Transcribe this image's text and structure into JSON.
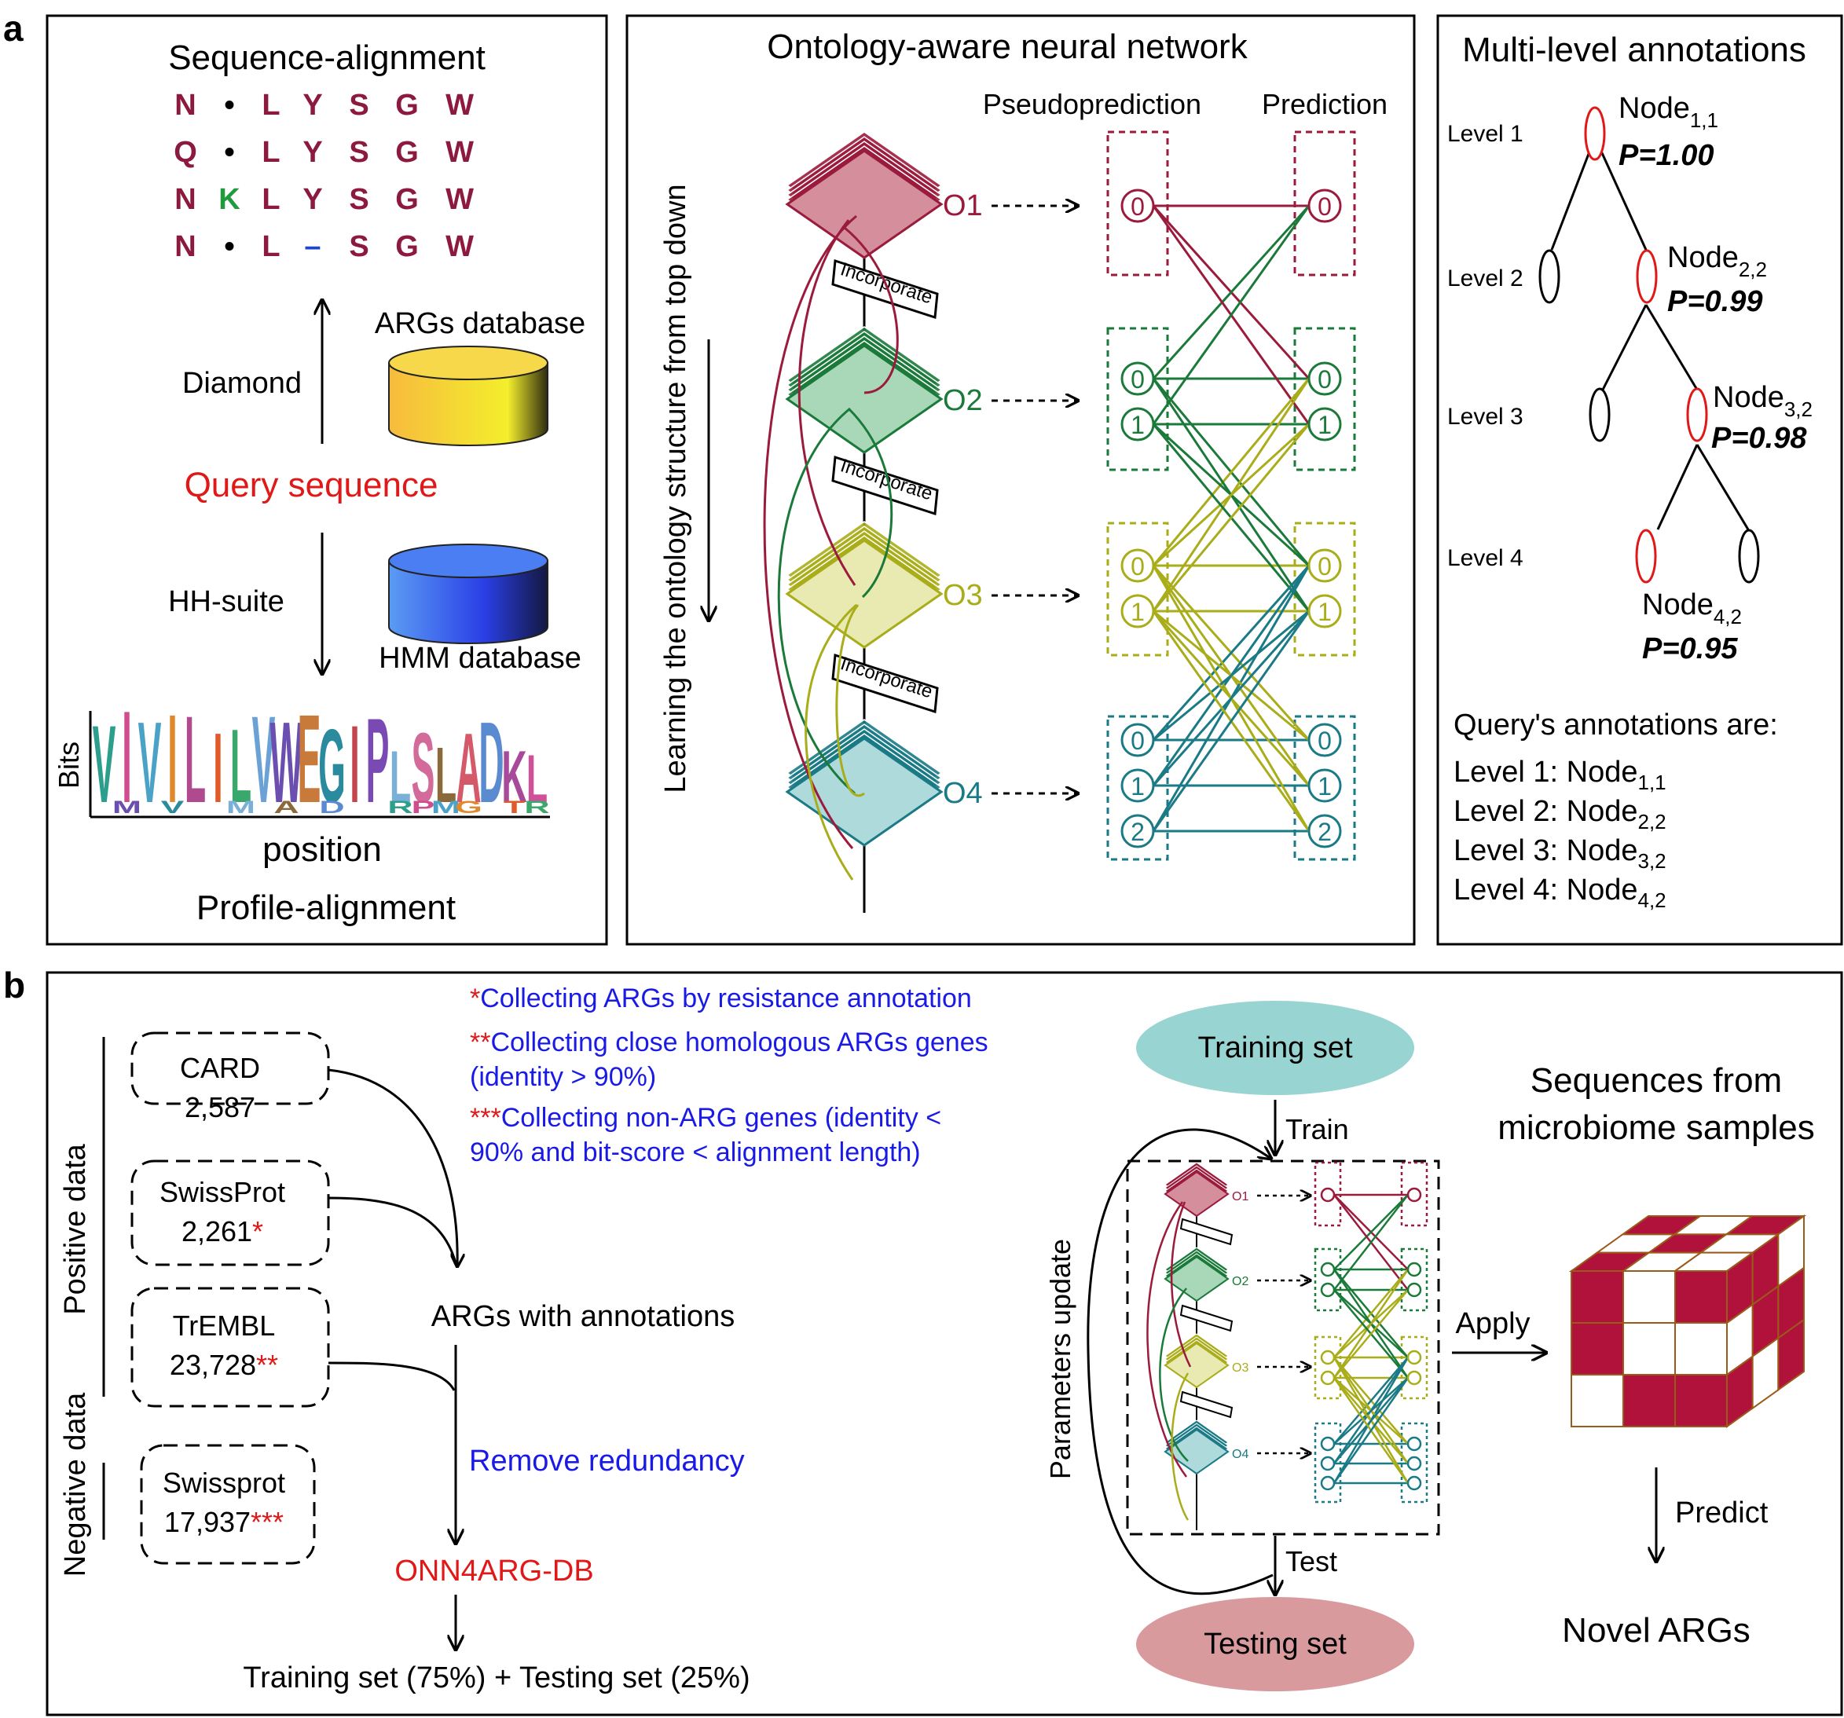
{
  "panel_labels": {
    "a": "a",
    "b": "b"
  },
  "colors": {
    "o1": "#9b1b3c",
    "o2": "#1b7a3a",
    "o3": "#a9ad1a",
    "o4": "#1a7a86",
    "aa": "#8c1a3f",
    "aa_green": "#1f9a3c",
    "aa_blue": "#1a47cc",
    "red": "#e01818",
    "blue": "#1a1ae6",
    "cube": "#b0123c",
    "training_fill": "#98d4d1",
    "testing_fill": "#d99a9d"
  },
  "seq_panel": {
    "title": "Sequence-alignment",
    "alignment": [
      [
        "N",
        "•",
        "L",
        "Y",
        "S",
        "G",
        "W"
      ],
      [
        "Q",
        "•",
        "L",
        "Y",
        "S",
        "G",
        "W"
      ],
      [
        "N",
        "K",
        "L",
        "Y",
        "S",
        "G",
        "W"
      ],
      [
        "N",
        "•",
        "L",
        "–",
        "S",
        "G",
        "W"
      ]
    ],
    "args_db": "ARGs database",
    "diamond": "Diamond",
    "query": "Query sequence",
    "hhsuite": "HH-suite",
    "hmm_db": "HMM database",
    "logo_letters": [
      "V",
      "I",
      "V",
      "I",
      "L",
      "I",
      "L",
      "V",
      "W",
      "E",
      "G",
      "I",
      "P",
      "L",
      "S",
      "L",
      "A",
      "D",
      "K",
      "L"
    ],
    "logo_sub_letters": [
      "M",
      "V",
      "M",
      "A",
      "D",
      "R",
      "P",
      "M",
      "G",
      "T",
      "R"
    ],
    "bits": "Bits",
    "position": "position",
    "profile_title": "Profile-alignment"
  },
  "nn_panel": {
    "title": "Ontology-aware neural network",
    "pseudo": "Pseudoprediction",
    "prediction": "Prediction",
    "side_text": "Learning the ontology structure from top down",
    "incorporate": "Incorporate",
    "layers": [
      "O1",
      "O2",
      "O3",
      "O4"
    ],
    "nodes": [
      [
        "0"
      ],
      [
        "0",
        "1"
      ],
      [
        "0",
        "1"
      ],
      [
        "0",
        "1",
        "2"
      ]
    ]
  },
  "ml_panel": {
    "title": "Multi-level annotations",
    "levels": [
      "Level 1",
      "Level 2",
      "Level 3",
      "Level 4"
    ],
    "node_main": "Node",
    "nodes": [
      {
        "sub": "1,1",
        "p": "P=1.00"
      },
      {
        "sub": "2,2",
        "p": "P=0.99"
      },
      {
        "sub": "3,2",
        "p": "P=0.98"
      },
      {
        "sub": "4,2",
        "p": "P=0.95"
      }
    ],
    "query_title": "Query's annotations are:",
    "annotations": [
      {
        "level": "Level 1: Node",
        "sub": "1,1"
      },
      {
        "level": "Level 2: Node",
        "sub": "2,2"
      },
      {
        "level": "Level 3: Node",
        "sub": "3,2"
      },
      {
        "level": "Level 4: Node",
        "sub": "4,2"
      }
    ]
  },
  "panel_b": {
    "positive": "Positive data",
    "negative": "Negative data",
    "sources": [
      {
        "name": "CARD",
        "count": "2,587",
        "mark": ""
      },
      {
        "name": "SwissProt",
        "count": "2,261",
        "mark": "*"
      },
      {
        "name": "TrEMBL",
        "count": "23,728",
        "mark": "**"
      },
      {
        "name": "Swissprot",
        "count": "17,937",
        "mark": "***"
      }
    ],
    "notes": [
      {
        "mark": "*",
        "text": "Collecting ARGs by resistance annotation"
      },
      {
        "mark": "**",
        "text": "Collecting close homologous ARGs genes"
      },
      {
        "mark": "",
        "text": "(identity > 90%)"
      },
      {
        "mark": "***",
        "text": "Collecting  non-ARG  genes  (identity  <"
      },
      {
        "mark": "",
        "text": "90% and bit-score < alignment length)"
      }
    ],
    "args_annot": "ARGs with annotations",
    "remove": "Remove redundancy",
    "db": "ONN4ARG-DB",
    "split": "Training set (75%) + Testing set (25%)",
    "training": "Training set",
    "testing": "Testing set",
    "train": "Train",
    "test": "Test",
    "params": "Parameters update",
    "mini_layers": [
      "O1",
      "O2",
      "O3",
      "O4"
    ],
    "seqs_line1": "Sequences from",
    "seqs_line2": "microbiome samples",
    "apply": "Apply",
    "predict": "Predict",
    "novel": "Novel ARGs"
  }
}
